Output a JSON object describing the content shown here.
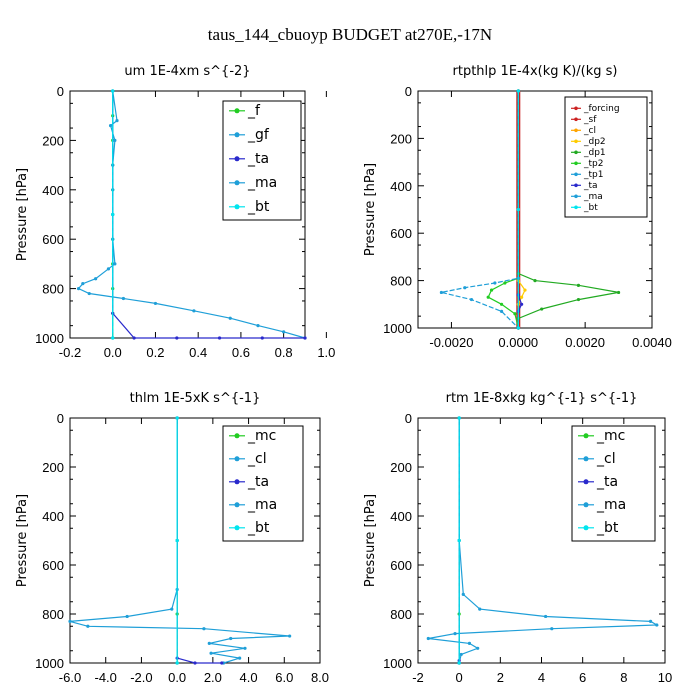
{
  "figure_title": "taus_144_cbuoyp  BUDGET at270E,-17N",
  "chart_data": [
    {
      "type": "line",
      "title": "um  1E-4xm s^{-2}",
      "ylabel": "Pressure [hPa]",
      "xlim": [
        -0.2,
        0.9
      ],
      "ylim": [
        1000,
        0
      ],
      "xticks": [
        "-0.2",
        "0.0",
        "0.2",
        "0.4",
        "0.6",
        "0.8",
        "1.0"
      ],
      "yticks": [
        "0",
        "200",
        "400",
        "600",
        "800",
        "1000"
      ],
      "legend": [
        "_f",
        "_gf",
        "_ta",
        "_ma",
        "_bt"
      ],
      "series": [
        {
          "name": "_f",
          "color": "#22cc22",
          "x": [
            0,
            0,
            0,
            0,
            0,
            0,
            0,
            0,
            0,
            0,
            0
          ],
          "y": [
            0,
            100,
            200,
            300,
            400,
            500,
            600,
            700,
            800,
            900,
            1000
          ]
        },
        {
          "name": "_gf",
          "color": "#1f9fd8",
          "x": [
            0,
            0.02,
            -0.01,
            0.01,
            0,
            0,
            0,
            0,
            0.01,
            -0.02,
            -0.08,
            -0.14,
            -0.16,
            -0.11,
            0.05,
            0.2,
            0.38,
            0.55,
            0.68,
            0.8,
            0.9
          ],
          "y": [
            0,
            120,
            140,
            200,
            300,
            400,
            500,
            600,
            700,
            720,
            760,
            780,
            800,
            820,
            840,
            860,
            890,
            920,
            950,
            975,
            1000
          ]
        },
        {
          "name": "_ta",
          "color": "#2a2acc",
          "x": [
            0,
            0,
            0.1,
            0.3,
            0.5,
            0.7,
            0.9
          ],
          "y": [
            0,
            900,
            1000,
            1000,
            1000,
            1000,
            1000
          ]
        },
        {
          "name": "_ma",
          "color": "#1f9fd8",
          "x": [
            0,
            0,
            0
          ],
          "y": [
            0,
            500,
            1000
          ]
        },
        {
          "name": "_bt",
          "color": "#00e5ee",
          "x": [
            0,
            0,
            0
          ],
          "y": [
            0,
            500,
            1000
          ]
        }
      ]
    },
    {
      "type": "line",
      "title": "rtpthlp  1E-4x(kg K)/(kg s)",
      "ylabel": "Pressure [hPa]",
      "xlim": [
        -0.003,
        0.004
      ],
      "ylim": [
        1000,
        0
      ],
      "xticks": [
        "-0.0020",
        "0.0000",
        "0.0020",
        "0.0040"
      ],
      "yticks": [
        "0",
        "200",
        "400",
        "600",
        "800",
        "1000"
      ],
      "legend": [
        "_forcing",
        "_sf",
        "_cl",
        "_dp2",
        "_dp1",
        "_tp2",
        "_tp1",
        "_ta",
        "_ma",
        "_bt"
      ],
      "series": [
        {
          "name": "_forcing",
          "color": "#cc2222",
          "x": [
            0,
            0,
            0
          ],
          "y": [
            0,
            500,
            1000
          ]
        },
        {
          "name": "_sf",
          "color": "#cc2222",
          "x": [
            0,
            0,
            0
          ],
          "y": [
            0,
            500,
            1000
          ]
        },
        {
          "name": "_cl",
          "color": "#ffa500",
          "x": [
            0,
            0,
            0
          ],
          "y": [
            0,
            500,
            1000
          ]
        },
        {
          "name": "_dp2",
          "color": "#ffcc00",
          "x": [
            0,
            0,
            0.0002,
            0.0001,
            0,
            0
          ],
          "y": [
            0,
            800,
            840,
            870,
            900,
            1000
          ]
        },
        {
          "name": "_dp1",
          "color": "#22aa22",
          "x": [
            0,
            0,
            0.0005,
            0.0018,
            0.003,
            0.0018,
            0.0007,
            0,
            0
          ],
          "y": [
            0,
            770,
            800,
            820,
            850,
            880,
            920,
            960,
            1000
          ]
        },
        {
          "name": "_tp2",
          "color": "#22cc22",
          "x": [
            0,
            0,
            -0.0004,
            -0.0008,
            -0.0009,
            -0.0005,
            -0.0001,
            0
          ],
          "y": [
            0,
            790,
            810,
            840,
            870,
            900,
            940,
            1000
          ]
        },
        {
          "name": "_tp1",
          "color": "#1f9fd8",
          "x": [
            0,
            0,
            -0.0007,
            -0.0016,
            -0.0023,
            -0.0014,
            -0.0005,
            0
          ],
          "y": [
            0,
            790,
            810,
            830,
            850,
            880,
            930,
            1000
          ]
        },
        {
          "name": "_ta",
          "color": "#2a2acc",
          "x": [
            0,
            0,
            0.0001,
            0,
            0
          ],
          "y": [
            0,
            860,
            900,
            930,
            1000
          ]
        },
        {
          "name": "_ma",
          "color": "#1f9fd8",
          "x": [
            0,
            0,
            0
          ],
          "y": [
            0,
            500,
            1000
          ]
        },
        {
          "name": "_bt",
          "color": "#00e5ee",
          "x": [
            0,
            0,
            0
          ],
          "y": [
            0,
            500,
            1000
          ]
        }
      ]
    },
    {
      "type": "line",
      "title": "thlm  1E-5xK s^{-1}",
      "ylabel": "Pressure [hPa]",
      "xlim": [
        -6.0,
        8.0
      ],
      "ylim": [
        1000,
        0
      ],
      "xticks": [
        "-6.0",
        "-4.0",
        "-2.0",
        "0.0",
        "2.0",
        "4.0",
        "6.0",
        "8.0"
      ],
      "yticks": [
        "0",
        "200",
        "400",
        "600",
        "800",
        "1000"
      ],
      "legend": [
        "_mc",
        "_cl",
        "_ta",
        "_ma",
        "_bt"
      ],
      "series": [
        {
          "name": "_mc",
          "color": "#22cc22",
          "x": [
            0,
            0,
            0,
            0
          ],
          "y": [
            0,
            500,
            800,
            1000
          ]
        },
        {
          "name": "_cl",
          "color": "#1f9fd8",
          "x": [
            0,
            0,
            0,
            -0.3,
            -2.8,
            -6.0,
            -5.0,
            1.5,
            6.3,
            3.0,
            1.8,
            3.8,
            1.9,
            3.5,
            2.6
          ],
          "y": [
            0,
            500,
            700,
            780,
            810,
            830,
            850,
            860,
            890,
            900,
            920,
            940,
            960,
            980,
            1000
          ]
        },
        {
          "name": "_ta",
          "color": "#2a2acc",
          "x": [
            0,
            0,
            1.0,
            2.5
          ],
          "y": [
            0,
            980,
            1000,
            1000
          ]
        },
        {
          "name": "_ma",
          "color": "#1f9fd8",
          "x": [
            0,
            0,
            0
          ],
          "y": [
            0,
            500,
            1000
          ]
        },
        {
          "name": "_bt",
          "color": "#00e5ee",
          "x": [
            0,
            0,
            0
          ],
          "y": [
            0,
            500,
            1000
          ]
        }
      ]
    },
    {
      "type": "line",
      "title": "rtm  1E-8xkg kg^{-1} s^{-1}",
      "ylabel": "Pressure [hPa]",
      "xlim": [
        -2,
        10
      ],
      "ylim": [
        1000,
        0
      ],
      "xticks": [
        "-2",
        "0",
        "2",
        "4",
        "6",
        "8",
        "10"
      ],
      "yticks": [
        "0",
        "200",
        "400",
        "600",
        "800",
        "1000"
      ],
      "legend": [
        "_mc",
        "_cl",
        "_ta",
        "_ma",
        "_bt"
      ],
      "series": [
        {
          "name": "_mc",
          "color": "#22cc22",
          "x": [
            0,
            0,
            0,
            0
          ],
          "y": [
            0,
            500,
            800,
            1000
          ]
        },
        {
          "name": "_cl",
          "color": "#1f9fd8",
          "x": [
            0,
            0,
            0.2,
            1.0,
            4.2,
            9.3,
            9.6,
            4.5,
            -0.2,
            -1.5,
            0.5,
            0.9,
            0.1,
            0
          ],
          "y": [
            0,
            500,
            720,
            780,
            810,
            830,
            845,
            860,
            880,
            900,
            920,
            940,
            965,
            1000
          ]
        },
        {
          "name": "_ta",
          "color": "#2a2acc",
          "x": [
            0,
            0,
            0
          ],
          "y": [
            0,
            990,
            1000
          ]
        },
        {
          "name": "_ma",
          "color": "#1f9fd8",
          "x": [
            0,
            0,
            0
          ],
          "y": [
            0,
            500,
            1000
          ]
        },
        {
          "name": "_bt",
          "color": "#00e5ee",
          "x": [
            0,
            0,
            0
          ],
          "y": [
            0,
            500,
            1000
          ]
        }
      ]
    }
  ]
}
